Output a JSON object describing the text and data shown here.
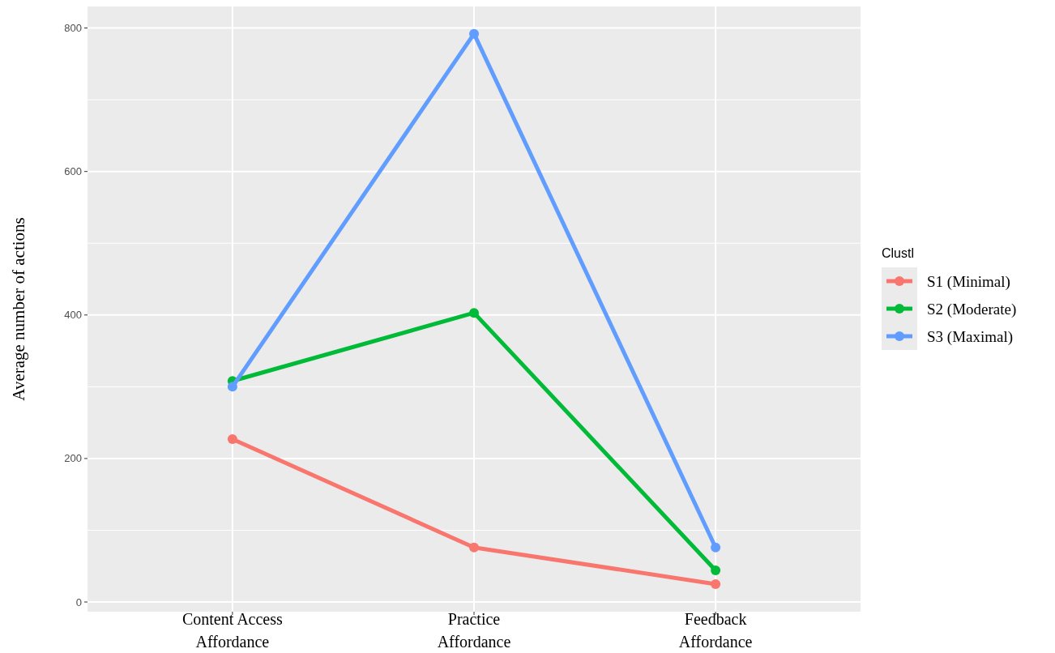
{
  "chart_data": {
    "type": "line",
    "ylabel": "Average number of actions",
    "legend_title": "Clustl",
    "categories": [
      "Content Access\nAffordance",
      "Practice\nAffordance",
      "Feedback\nAffordance"
    ],
    "series": [
      {
        "name": "S1 (Minimal)",
        "color": "#f8766d",
        "values": [
          227,
          76,
          25
        ]
      },
      {
        "name": "S2 (Moderate)",
        "color": "#00ba38",
        "values": [
          308,
          403,
          44
        ]
      },
      {
        "name": "S3 (Maximal)",
        "color": "#619cff",
        "values": [
          300,
          792,
          76
        ]
      }
    ],
    "ylim": [
      -13.5,
      830
    ],
    "yticks": [
      0,
      200,
      400,
      600,
      800
    ],
    "grid": true,
    "legend": "right",
    "marker": "circle",
    "line_style": "solid"
  }
}
